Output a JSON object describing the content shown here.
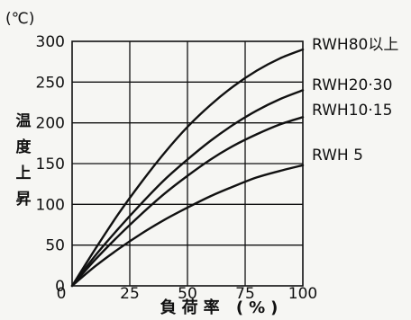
{
  "chart_data": {
    "type": "line",
    "title": "",
    "y_unit": "(℃)",
    "ylabel": "温度上昇",
    "xlabel": "負荷率 (%)",
    "xlim": [
      0,
      100
    ],
    "ylim": [
      0,
      300
    ],
    "x_ticks": [
      0,
      25,
      50,
      75,
      100
    ],
    "y_ticks": [
      0,
      50,
      100,
      150,
      200,
      250,
      300
    ],
    "x_tick_labels": [
      "0",
      "25",
      "50",
      "75",
      "100"
    ],
    "y_tick_labels": [
      "0",
      "50",
      "100",
      "150",
      "200",
      "250",
      "300"
    ],
    "grid": true,
    "series": [
      {
        "name": "RWH80以上",
        "x": [
          0,
          10,
          20,
          30,
          40,
          50,
          60,
          70,
          80,
          90,
          100
        ],
        "values": [
          0,
          45,
          88,
          127,
          163,
          195,
          222,
          245,
          264,
          279,
          290
        ]
      },
      {
        "name": "RWH20·30",
        "x": [
          0,
          10,
          20,
          30,
          40,
          50,
          60,
          70,
          80,
          90,
          100
        ],
        "values": [
          0,
          37,
          70,
          101,
          130,
          155,
          178,
          198,
          215,
          229,
          240
        ]
      },
      {
        "name": "RWH10·15",
        "x": [
          0,
          10,
          20,
          30,
          40,
          50,
          60,
          70,
          80,
          90,
          100
        ],
        "values": [
          0,
          32,
          61,
          88,
          113,
          135,
          155,
          172,
          186,
          198,
          207
        ]
      },
      {
        "name": "RWH 5",
        "x": [
          0,
          10,
          20,
          30,
          40,
          50,
          60,
          70,
          80,
          90,
          100
        ],
        "values": [
          0,
          24,
          45,
          64,
          81,
          96,
          110,
          122,
          133,
          141,
          148
        ]
      }
    ]
  }
}
